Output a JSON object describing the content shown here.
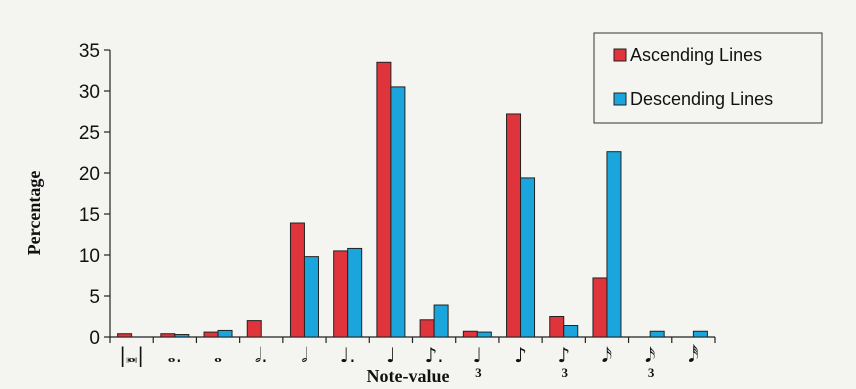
{
  "chart_data": {
    "type": "bar",
    "xlabel": "Note-value",
    "ylabel": "Percentage",
    "ylim": [
      0,
      35
    ],
    "yticks": [
      0,
      5,
      10,
      15,
      20,
      25,
      30,
      35
    ],
    "grid": false,
    "legend_position": "top-right",
    "categories": [
      {
        "symbol": "breve-icon",
        "glyph": "|𝅜|",
        "sub": ""
      },
      {
        "symbol": "dotted-whole-note-icon",
        "glyph": "𝅝.",
        "sub": ""
      },
      {
        "symbol": "whole-note-icon",
        "glyph": "𝅝",
        "sub": ""
      },
      {
        "symbol": "dotted-half-note-icon",
        "glyph": "𝅗𝅥.",
        "sub": ""
      },
      {
        "symbol": "half-note-icon",
        "glyph": "𝅗𝅥",
        "sub": ""
      },
      {
        "symbol": "dotted-quarter-note-icon",
        "glyph": "♩.",
        "sub": ""
      },
      {
        "symbol": "quarter-note-icon",
        "glyph": "♩",
        "sub": ""
      },
      {
        "symbol": "dotted-eighth-note-icon",
        "glyph": "♪.",
        "sub": ""
      },
      {
        "symbol": "quarter-triplet-icon",
        "glyph": "♩",
        "sub": "3"
      },
      {
        "symbol": "eighth-note-icon",
        "glyph": "♪",
        "sub": ""
      },
      {
        "symbol": "eighth-triplet-icon",
        "glyph": "♪",
        "sub": "3"
      },
      {
        "symbol": "sixteenth-note-icon",
        "glyph": "𝅘𝅥𝅯",
        "sub": ""
      },
      {
        "symbol": "sixteenth-triplet-icon",
        "glyph": "𝅘𝅥𝅯",
        "sub": "3"
      },
      {
        "symbol": "thirty-second-note-icon",
        "glyph": "𝅘𝅥𝅰",
        "sub": ""
      }
    ],
    "series": [
      {
        "name": "Ascending Lines",
        "color": "#e0343c",
        "values": [
          0.4,
          0.4,
          0.6,
          2.0,
          13.9,
          10.5,
          33.5,
          2.1,
          0.7,
          27.2,
          2.5,
          7.2,
          0.0,
          0.0
        ]
      },
      {
        "name": "Descending Lines",
        "color": "#1aa5dd",
        "values": [
          0.0,
          0.3,
          0.8,
          0.0,
          9.8,
          10.8,
          30.5,
          3.9,
          0.6,
          19.4,
          1.4,
          22.6,
          0.7,
          0.7
        ]
      }
    ]
  }
}
